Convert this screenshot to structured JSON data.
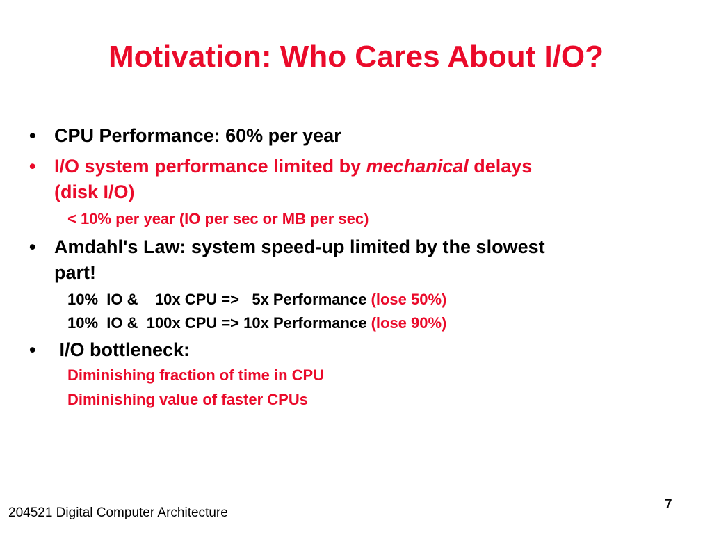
{
  "slide": {
    "title": "Motivation: Who Cares About I/O?",
    "bullet_marker": "•",
    "bullets": [
      {
        "text": "CPU Performance: 60% per year"
      },
      {
        "text_before": "I/O system performance limited by ",
        "text_emphasis": "mechanical",
        "text_after": " delays",
        "continuation": "(disk I/O)",
        "sub": "< 10% per year (IO per sec or MB per sec)"
      },
      {
        "text": "Amdahl's Law: system speed-up limited by the slowest",
        "continuation": "part!",
        "sub_lines": [
          {
            "main": "10%  IO &    10x CPU =>   5x Performance ",
            "note": "(lose 50%)"
          },
          {
            "main": "10%  IO &  100x CPU => 10x Performance ",
            "note": "(lose 90%)"
          }
        ]
      },
      {
        "text": " I/O bottleneck:",
        "sub_lines": [
          "Diminishing fraction of time in CPU",
          "Diminishing value of faster CPUs"
        ]
      }
    ],
    "footer": "204521 Digital Computer Architecture",
    "page_number": "7"
  },
  "colors": {
    "accent_red": "#ea0a2a",
    "text_black": "#000000",
    "background": "#ffffff"
  }
}
